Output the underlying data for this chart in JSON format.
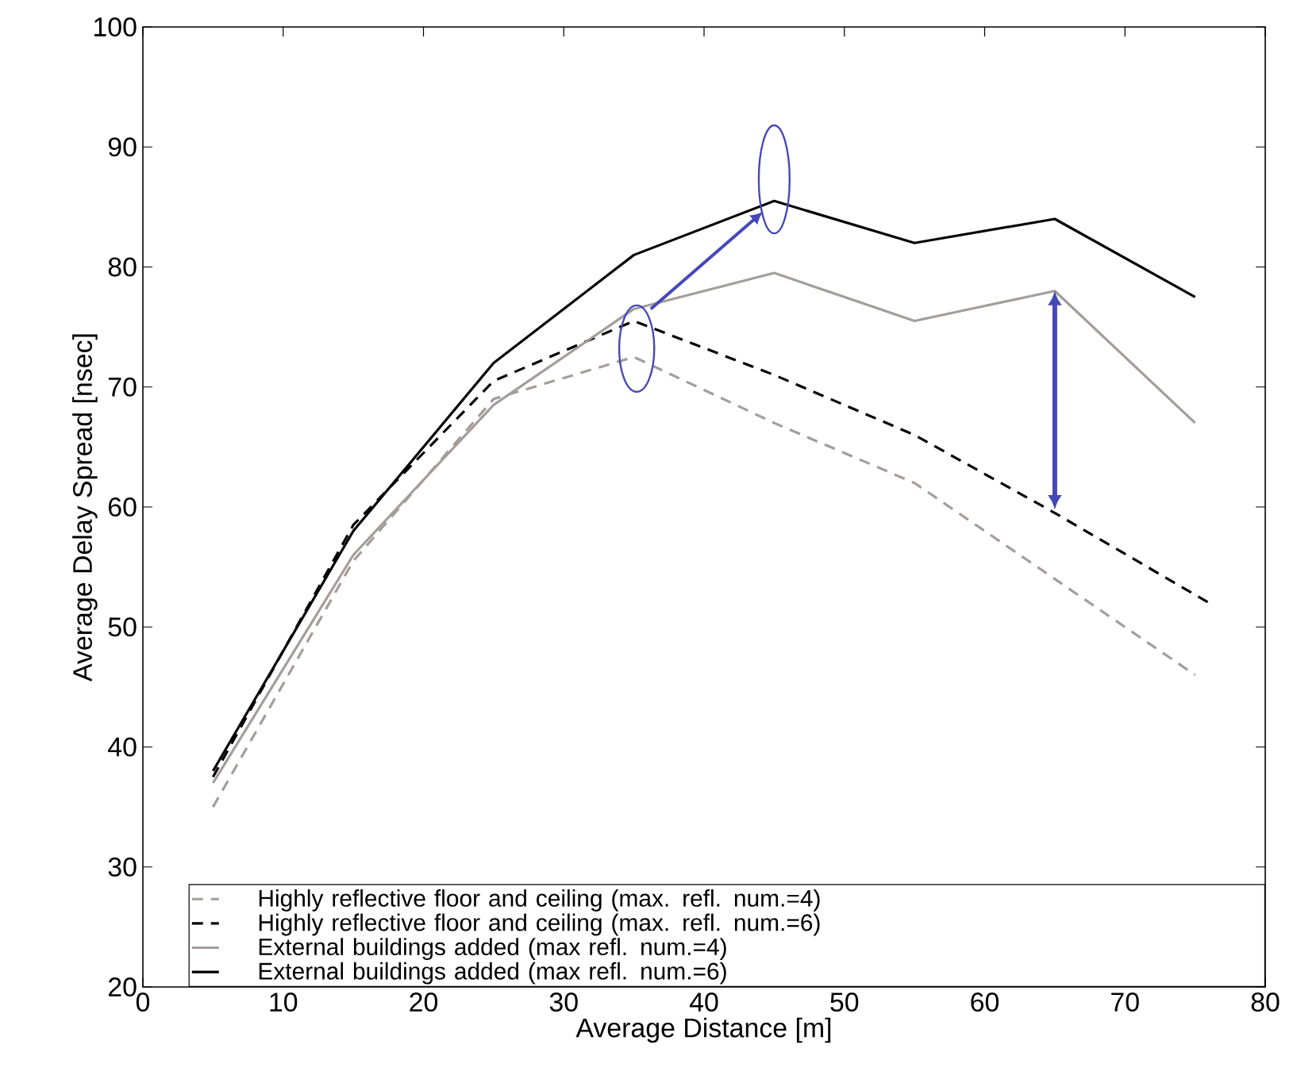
{
  "chart_data": {
    "type": "line",
    "xlabel": "Average Distance [m]",
    "ylabel": "Average Delay Spread [nsec]",
    "xlim": [
      0,
      80
    ],
    "xticks": [
      0,
      10,
      20,
      30,
      40,
      50,
      60,
      70,
      80
    ],
    "ylim": [
      20,
      100
    ],
    "yticks": [
      20,
      30,
      40,
      50,
      60,
      70,
      80,
      90,
      100
    ],
    "grid": false,
    "legend": "bottom",
    "marker": "none",
    "series": [
      {
        "name": "Highly reflective floor and ceiling (max. refl. num.=4)",
        "color": "#a39d9b",
        "line_style": "dashed",
        "x": [
          5,
          15,
          25,
          35,
          45,
          55,
          65,
          75
        ],
        "values": [
          35,
          55.5,
          69,
          72.5,
          67,
          62,
          54,
          46
        ]
      },
      {
        "name": "Highly reflective floor and ceiling (max. refl. num.=6)",
        "color": "#000000",
        "line_style": "dashed",
        "x": [
          5,
          15,
          25,
          35,
          45,
          55,
          65,
          76
        ],
        "values": [
          37.5,
          58.5,
          70.5,
          75.5,
          71,
          66,
          59.5,
          52
        ]
      },
      {
        "name": "External buildings added (max refl. num.=4)",
        "color": "#a39d9b",
        "line_style": "solid",
        "x": [
          5,
          15,
          25,
          35,
          45,
          55,
          65,
          75
        ],
        "values": [
          37,
          56,
          68.5,
          76.5,
          79.5,
          75.5,
          78,
          67
        ]
      },
      {
        "name": "External buildings added (max refl. num.=6)",
        "color": "#000000",
        "line_style": "solid",
        "x": [
          5,
          15,
          25,
          35,
          45,
          55,
          65,
          75
        ],
        "values": [
          38,
          58,
          72,
          81,
          85.5,
          82,
          84,
          77.5
        ]
      }
    ]
  }
}
